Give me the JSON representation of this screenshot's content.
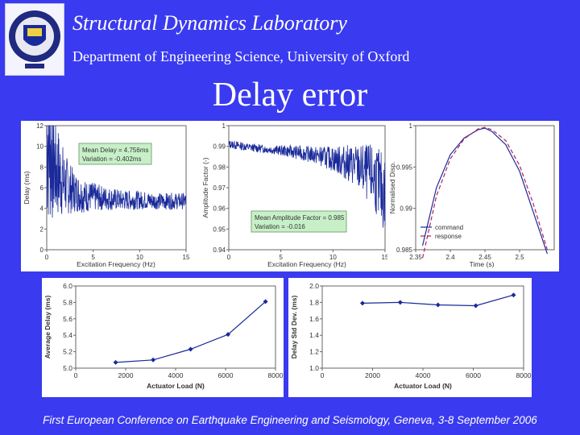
{
  "header": {
    "title": "Structural Dynamics Laboratory",
    "subtitle": "Department of Engineering Science, University of Oxford",
    "slide_title": "Delay error"
  },
  "footer": {
    "text": "First European Conference on Earthquake Engineering and Seismology, Geneva, 3-8 September 2006"
  },
  "colors": {
    "background": "#3a3af0",
    "trace": "#1a2a9a",
    "annotation_box": "#c8f0c8"
  },
  "chart_data": [
    {
      "type": "line",
      "xlabel": "Excitation Frequency (Hz)",
      "ylabel": "Delay (ms)",
      "xlim": [
        0,
        15
      ],
      "ylim": [
        0,
        12
      ],
      "xticks": [
        "0",
        "5",
        "10",
        "15"
      ],
      "yticks": [
        "0",
        "2",
        "4",
        "6",
        "8",
        "10",
        "12"
      ],
      "annotations": [
        "Mean Delay = 4.756ms",
        "Variation = -0.402ms"
      ],
      "series": [
        {
          "x": [
            0.2,
            1,
            2,
            3,
            4,
            6,
            8,
            10,
            12,
            15
          ],
          "y": [
            11,
            7.8,
            6.3,
            5.6,
            5.2,
            5.0,
            4.8,
            4.8,
            4.7,
            4.7
          ],
          "spread": [
            9,
            5,
            3,
            2,
            1.6,
            1.2,
            1,
            0.9,
            0.8,
            0.8
          ]
        }
      ]
    },
    {
      "type": "line",
      "xlabel": "Excitation Frequency (Hz)",
      "ylabel": "Amplitude Factor (-)",
      "xlim": [
        0,
        15
      ],
      "ylim": [
        0.94,
        1.0
      ],
      "xticks": [
        "0",
        "5",
        "10",
        "15"
      ],
      "yticks": [
        "0.94",
        "0.95",
        "0.96",
        "0.97",
        "0.98",
        "0.99",
        "1"
      ],
      "annotations": [
        "Mean Amplitude Factor = 0.985",
        "Variation = -0.016"
      ],
      "series": [
        {
          "x": [
            0.2,
            2,
            4,
            6,
            8,
            10,
            12,
            14,
            15
          ],
          "y": [
            0.991,
            0.9895,
            0.9885,
            0.9875,
            0.986,
            0.984,
            0.981,
            0.975,
            0.966
          ],
          "spread": [
            0.002,
            0.002,
            0.002,
            0.003,
            0.004,
            0.006,
            0.01,
            0.016,
            0.02
          ]
        }
      ]
    },
    {
      "type": "line",
      "xlabel": "Time (s)",
      "ylabel": "Normalised Disp.",
      "xlim": [
        2.35,
        2.55
      ],
      "ylim": [
        0.985,
        1.0
      ],
      "xticks": [
        "2.35",
        "2.4",
        "2.45",
        "2.5"
      ],
      "yticks": [
        "0.985",
        "0.99",
        "0.995",
        "1"
      ],
      "legend_position": "bottom-left",
      "series": [
        {
          "name": "command",
          "x": [
            2.36,
            2.38,
            2.4,
            2.42,
            2.44,
            2.45,
            2.46,
            2.48,
            2.5,
            2.52,
            2.54
          ],
          "y": [
            0.9855,
            0.9925,
            0.9965,
            0.9985,
            0.9995,
            0.9997,
            0.9993,
            0.9977,
            0.9945,
            0.9895,
            0.9845
          ]
        },
        {
          "name": "response",
          "x": [
            2.36,
            2.38,
            2.4,
            2.42,
            2.44,
            2.45,
            2.46,
            2.48,
            2.5,
            2.52,
            2.54
          ],
          "y": [
            0.984,
            0.9915,
            0.996,
            0.9984,
            0.9996,
            0.9998,
            0.9995,
            0.9982,
            0.9952,
            0.9905,
            0.985
          ]
        }
      ]
    },
    {
      "type": "line",
      "xlabel": "Actuator Load (N)",
      "ylabel": "Average Delay (ms)",
      "xlim": [
        0,
        8000
      ],
      "ylim": [
        5.0,
        6.0
      ],
      "xticks": [
        "0",
        "2000",
        "4000",
        "6000",
        "8000"
      ],
      "yticks": [
        "5.0",
        "5.2",
        "5.4",
        "5.6",
        "5.8",
        "6.0"
      ],
      "series": [
        {
          "x": [
            1600,
            3100,
            4600,
            6100,
            7600
          ],
          "y": [
            5.07,
            5.1,
            5.23,
            5.41,
            5.81
          ]
        }
      ]
    },
    {
      "type": "line",
      "xlabel": "Actuator Load (N)",
      "ylabel": "Delay Std Dev. (ms)",
      "xlim": [
        0,
        8000
      ],
      "ylim": [
        1.0,
        2.0
      ],
      "xticks": [
        "0",
        "2000",
        "4000",
        "6000",
        "8000"
      ],
      "yticks": [
        "1.0",
        "1.2",
        "1.4",
        "1.6",
        "1.8",
        "2.0"
      ],
      "series": [
        {
          "x": [
            1600,
            3100,
            4600,
            6100,
            7600
          ],
          "y": [
            1.79,
            1.8,
            1.77,
            1.76,
            1.89
          ]
        }
      ]
    }
  ]
}
